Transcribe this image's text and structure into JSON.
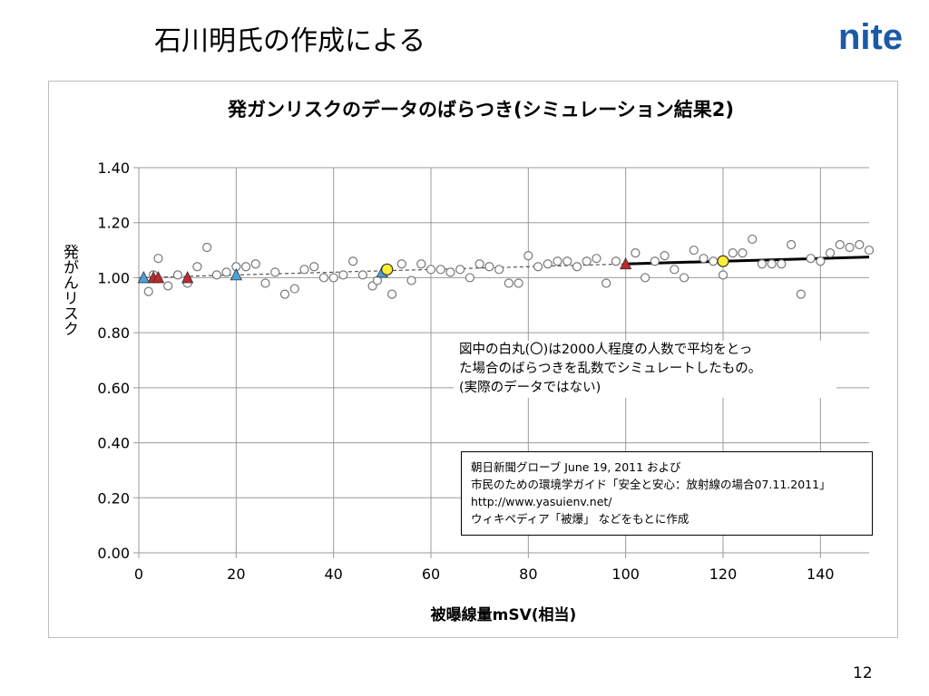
{
  "slide": {
    "title": "石川明氏の作成による",
    "page_number": "12",
    "logo_text": "nite",
    "brand_color": "#1a5aa6"
  },
  "note": {
    "lines": [
      "図中の白丸(〇)は2000人程度の人数で平均をとっ",
      "た場合のばらつきを乱数でシミュレートしたもの。",
      "(実際のデータではない)"
    ]
  },
  "source": {
    "lines": [
      "朝日新聞グローブ June 19, 2011 および",
      "市民のための環境学ガイド「安全と安心：放射線の場合07.11.2011」",
      "http://www.yasuienv.net/",
      "ウィキペディア「被爆」 などをもとに作成"
    ]
  },
  "chart_data": {
    "type": "scatter",
    "title": "発ガンリスクのデータのばらつき(シミュレーション結果2)",
    "xlabel": "被曝線量mSV(相当)",
    "ylabel": "発がんリスク",
    "xlim": [
      0,
      150
    ],
    "ylim": [
      0,
      1.4
    ],
    "xticks": [
      0,
      20,
      40,
      60,
      80,
      100,
      120,
      140
    ],
    "yticks": [
      0.0,
      0.2,
      0.4,
      0.6,
      0.8,
      1.0,
      1.2,
      1.4
    ],
    "xtick_labels": [
      "0",
      "20",
      "40",
      "60",
      "80",
      "100",
      "120",
      "140"
    ],
    "ytick_labels": [
      "0.00",
      "0.20",
      "0.40",
      "0.60",
      "0.80",
      "1.00",
      "1.20",
      "1.40"
    ],
    "grid": true,
    "series": [
      {
        "marker": "open-circle",
        "color": "#777777",
        "points": [
          [
            2,
            0.95
          ],
          [
            3,
            1.01
          ],
          [
            4,
            1.07
          ],
          [
            6,
            0.97
          ],
          [
            8,
            1.01
          ],
          [
            10,
            0.98
          ],
          [
            12,
            1.04
          ],
          [
            14,
            1.11
          ],
          [
            16,
            1.01
          ],
          [
            18,
            1.02
          ],
          [
            20,
            1.04
          ],
          [
            22,
            1.04
          ],
          [
            24,
            1.05
          ],
          [
            26,
            0.98
          ],
          [
            28,
            1.02
          ],
          [
            30,
            0.94
          ],
          [
            32,
            0.96
          ],
          [
            34,
            1.03
          ],
          [
            36,
            1.04
          ],
          [
            38,
            1.0
          ],
          [
            40,
            1.0
          ],
          [
            42,
            1.01
          ],
          [
            44,
            1.06
          ],
          [
            46,
            1.01
          ],
          [
            48,
            0.97
          ],
          [
            49,
            0.99
          ],
          [
            52,
            0.94
          ],
          [
            54,
            1.05
          ],
          [
            56,
            0.99
          ],
          [
            58,
            1.05
          ],
          [
            60,
            1.03
          ],
          [
            62,
            1.03
          ],
          [
            64,
            1.02
          ],
          [
            66,
            1.03
          ],
          [
            68,
            1.0
          ],
          [
            70,
            1.05
          ],
          [
            72,
            1.04
          ],
          [
            74,
            1.03
          ],
          [
            76,
            0.98
          ],
          [
            78,
            0.98
          ],
          [
            80,
            1.08
          ],
          [
            82,
            1.04
          ],
          [
            84,
            1.05
          ],
          [
            86,
            1.06
          ],
          [
            88,
            1.06
          ],
          [
            90,
            1.04
          ],
          [
            92,
            1.06
          ],
          [
            94,
            1.07
          ],
          [
            96,
            0.98
          ],
          [
            98,
            1.06
          ],
          [
            102,
            1.09
          ],
          [
            104,
            1.0
          ],
          [
            106,
            1.06
          ],
          [
            108,
            1.08
          ],
          [
            110,
            1.03
          ],
          [
            112,
            1.0
          ],
          [
            114,
            1.1
          ],
          [
            116,
            1.07
          ],
          [
            118,
            1.06
          ],
          [
            120,
            1.01
          ],
          [
            122,
            1.09
          ],
          [
            124,
            1.09
          ],
          [
            126,
            1.14
          ],
          [
            128,
            1.05
          ],
          [
            130,
            1.05
          ],
          [
            132,
            1.05
          ],
          [
            134,
            1.12
          ],
          [
            136,
            0.94
          ],
          [
            138,
            1.07
          ],
          [
            140,
            1.06
          ],
          [
            142,
            1.09
          ],
          [
            144,
            1.12
          ],
          [
            146,
            1.11
          ],
          [
            148,
            1.12
          ],
          [
            150,
            1.1
          ]
        ]
      },
      {
        "marker": "triangle",
        "color": "#c0292b",
        "points": [
          [
            3,
            1.0
          ],
          [
            4,
            1.0
          ],
          [
            10,
            1.0
          ],
          [
            100,
            1.05
          ]
        ]
      },
      {
        "marker": "triangle",
        "color": "#4aa3df",
        "points": [
          [
            1,
            1.0
          ],
          [
            20,
            1.01
          ],
          [
            50,
            1.02
          ]
        ]
      },
      {
        "marker": "filled-circle",
        "color": "#ffee33",
        "points": [
          [
            51,
            1.03
          ],
          [
            120,
            1.06
          ]
        ]
      },
      {
        "marker": "dashed-line",
        "color": "#555555",
        "points": [
          [
            0,
            1.0
          ],
          [
            100,
            1.05
          ]
        ]
      },
      {
        "marker": "solid-line",
        "color": "#000000",
        "points": [
          [
            100,
            1.05
          ],
          [
            150,
            1.075
          ]
        ]
      }
    ]
  }
}
